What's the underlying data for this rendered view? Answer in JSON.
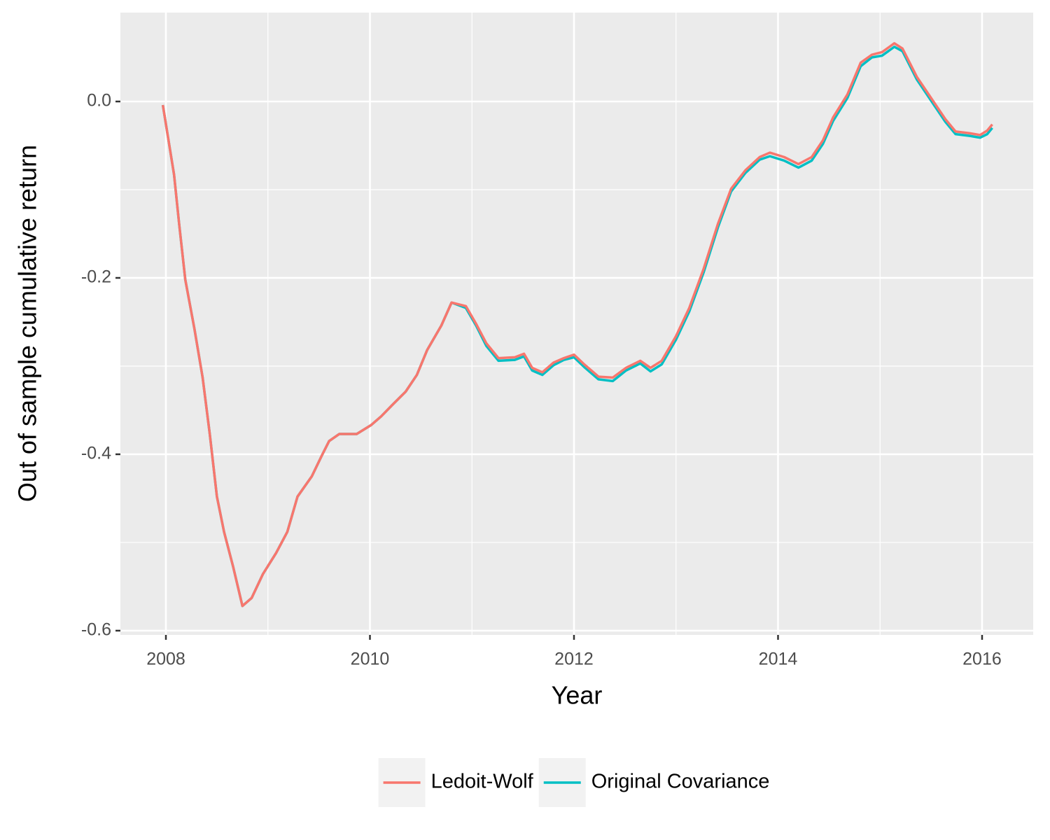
{
  "chart_data": {
    "type": "line",
    "x_label": "Year",
    "y_label": "Out of sample cumulative return",
    "x": [
      2007.97,
      2008.02,
      2008.08,
      2008.13,
      2008.19,
      2008.28,
      2008.36,
      2008.43,
      2008.5,
      2008.57,
      2008.66,
      2008.75,
      2008.84,
      2008.95,
      2009.08,
      2009.19,
      2009.29,
      2009.43,
      2009.53,
      2009.6,
      2009.7,
      2009.87,
      2010.01,
      2010.11,
      2010.22,
      2010.35,
      2010.46,
      2010.56,
      2010.7,
      2010.8,
      2010.94,
      2011.04,
      2011.14,
      2011.26,
      2011.42,
      2011.51,
      2011.59,
      2011.69,
      2011.8,
      2011.9,
      2012.0,
      2012.1,
      2012.24,
      2012.38,
      2012.51,
      2012.65,
      2012.75,
      2012.86,
      2013.0,
      2013.13,
      2013.27,
      2013.41,
      2013.54,
      2013.68,
      2013.82,
      2013.92,
      2014.06,
      2014.2,
      2014.33,
      2014.44,
      2014.54,
      2014.68,
      2014.81,
      2014.92,
      2015.02,
      2015.14,
      2015.22,
      2015.36,
      2015.5,
      2015.64,
      2015.74,
      2015.88,
      2015.98,
      2016.05,
      2016.1
    ],
    "series": [
      {
        "name": "Ledoit-Wolf",
        "color": "#F8766D",
        "values": [
          -0.004,
          -0.04,
          -0.083,
          -0.139,
          -0.202,
          -0.258,
          -0.313,
          -0.377,
          -0.448,
          -0.488,
          -0.528,
          -0.572,
          -0.563,
          -0.536,
          -0.512,
          -0.488,
          -0.448,
          -0.425,
          -0.401,
          -0.385,
          -0.377,
          -0.377,
          -0.367,
          -0.357,
          -0.344,
          -0.329,
          -0.31,
          -0.282,
          -0.254,
          -0.228,
          -0.232,
          -0.252,
          -0.274,
          -0.291,
          -0.29,
          -0.286,
          -0.302,
          -0.307,
          -0.296,
          -0.291,
          -0.287,
          -0.298,
          -0.312,
          -0.313,
          -0.302,
          -0.294,
          -0.302,
          -0.294,
          -0.266,
          -0.234,
          -0.19,
          -0.139,
          -0.099,
          -0.078,
          -0.063,
          -0.058,
          -0.063,
          -0.071,
          -0.063,
          -0.044,
          -0.018,
          0.008,
          0.044,
          0.053,
          0.056,
          0.066,
          0.06,
          0.028,
          0.004,
          -0.02,
          -0.034,
          -0.036,
          -0.038,
          -0.033,
          -0.026
        ]
      },
      {
        "name": "Original Covariance",
        "color": "#00BFC4",
        "values": [
          -0.004,
          -0.04,
          -0.083,
          -0.139,
          -0.202,
          -0.258,
          -0.313,
          -0.377,
          -0.448,
          -0.488,
          -0.528,
          -0.572,
          -0.563,
          -0.536,
          -0.512,
          -0.488,
          -0.448,
          -0.425,
          -0.401,
          -0.385,
          -0.377,
          -0.377,
          -0.367,
          -0.357,
          -0.344,
          -0.329,
          -0.31,
          -0.282,
          -0.254,
          -0.228,
          -0.234,
          -0.254,
          -0.277,
          -0.294,
          -0.293,
          -0.289,
          -0.305,
          -0.31,
          -0.299,
          -0.293,
          -0.29,
          -0.301,
          -0.315,
          -0.317,
          -0.305,
          -0.297,
          -0.306,
          -0.298,
          -0.27,
          -0.238,
          -0.194,
          -0.143,
          -0.102,
          -0.081,
          -0.066,
          -0.062,
          -0.067,
          -0.075,
          -0.067,
          -0.048,
          -0.022,
          0.004,
          0.04,
          0.05,
          0.052,
          0.062,
          0.057,
          0.025,
          0.001,
          -0.023,
          -0.037,
          -0.039,
          -0.041,
          -0.037,
          -0.03
        ]
      }
    ],
    "xlim": [
      2007.554,
      2016.501
    ],
    "xticks": [
      2008,
      2010,
      2012,
      2014,
      2016
    ],
    "ylim": [
      -0.6048,
      0.1008
    ],
    "yticks": [
      {
        "value": 0,
        "label": "0.0"
      },
      -0.2,
      -0.4,
      -0.6
    ],
    "grid": true,
    "legend": "bottom"
  }
}
